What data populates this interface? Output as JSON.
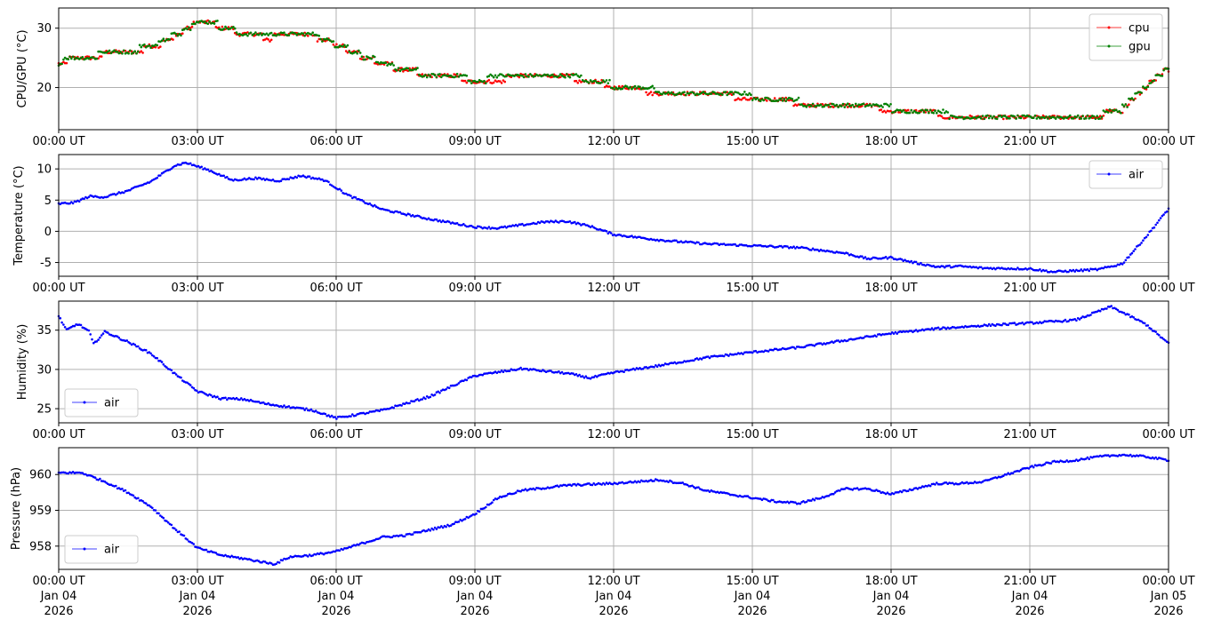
{
  "chart_data": [
    {
      "type": "scatter",
      "ylabel": "CPU/GPU (°C)",
      "xlim": [
        "2026-01-04T00:00:00Z",
        "2026-01-05T00:00:00Z"
      ],
      "ylim": [
        12.9,
        33.4
      ],
      "yticks": [
        20,
        30
      ],
      "grid": true,
      "legend": "top-right",
      "x_tick_labels": [
        "00:00 UT",
        "03:00 UT",
        "06:00 UT",
        "09:00 UT",
        "12:00 UT",
        "15:00 UT",
        "18:00 UT",
        "21:00 UT",
        "00:00 UT"
      ],
      "series": [
        {
          "name": "cpu",
          "color": "#ff0000",
          "x": [
            "2026-01-04T00:00:00Z",
            "2026-01-04T00:30:00Z",
            "2026-01-04T01:00:00Z",
            "2026-01-04T01:30:00Z",
            "2026-01-04T02:00:00Z",
            "2026-01-04T02:30:00Z",
            "2026-01-04T03:00:00Z",
            "2026-01-04T03:30:00Z",
            "2026-01-04T04:00:00Z",
            "2026-01-04T04:30:00Z",
            "2026-01-04T05:00:00Z",
            "2026-01-04T05:30:00Z",
            "2026-01-04T06:00:00Z",
            "2026-01-04T06:30:00Z",
            "2026-01-04T07:00:00Z",
            "2026-01-04T08:00:00Z",
            "2026-01-04T09:00:00Z",
            "2026-01-04T10:00:00Z",
            "2026-01-04T11:00:00Z",
            "2026-01-04T12:00:00Z",
            "2026-01-04T13:00:00Z",
            "2026-01-04T14:00:00Z",
            "2026-01-04T15:00:00Z",
            "2026-01-04T16:00:00Z",
            "2026-01-04T17:00:00Z",
            "2026-01-04T18:00:00Z",
            "2026-01-04T19:00:00Z",
            "2026-01-04T20:00:00Z",
            "2026-01-04T21:00:00Z",
            "2026-01-04T22:00:00Z",
            "2026-01-04T22:30:00Z",
            "2026-01-04T23:00:00Z",
            "2026-01-04T23:30:00Z",
            "2026-01-05T00:00:00Z"
          ],
          "values": [
            24.3,
            24.8,
            25.6,
            25.8,
            26.8,
            28.5,
            31.1,
            30.3,
            28.9,
            28.4,
            28.8,
            28.8,
            27.2,
            25.5,
            23.9,
            22.0,
            21.3,
            21.6,
            21.7,
            20.2,
            19.2,
            18.8,
            18.3,
            17.4,
            16.8,
            16.4,
            15.5,
            15.1,
            14.8,
            14.8,
            15.2,
            16.4,
            20.0,
            23.2
          ]
        },
        {
          "name": "gpu",
          "color": "#008000",
          "x": [
            "2026-01-04T00:00:00Z",
            "2026-01-04T00:30:00Z",
            "2026-01-04T01:00:00Z",
            "2026-01-04T01:30:00Z",
            "2026-01-04T02:00:00Z",
            "2026-01-04T02:30:00Z",
            "2026-01-04T03:00:00Z",
            "2026-01-04T03:30:00Z",
            "2026-01-04T04:00:00Z",
            "2026-01-04T04:30:00Z",
            "2026-01-04T05:00:00Z",
            "2026-01-04T05:30:00Z",
            "2026-01-04T06:00:00Z",
            "2026-01-04T06:30:00Z",
            "2026-01-04T07:00:00Z",
            "2026-01-04T08:00:00Z",
            "2026-01-04T09:00:00Z",
            "2026-01-04T10:00:00Z",
            "2026-01-04T11:00:00Z",
            "2026-01-04T12:00:00Z",
            "2026-01-04T13:00:00Z",
            "2026-01-04T14:00:00Z",
            "2026-01-04T15:00:00Z",
            "2026-01-04T16:00:00Z",
            "2026-01-04T17:00:00Z",
            "2026-01-04T18:00:00Z",
            "2026-01-04T19:00:00Z",
            "2026-01-04T20:00:00Z",
            "2026-01-04T21:00:00Z",
            "2026-01-04T22:00:00Z",
            "2026-01-04T22:30:00Z",
            "2026-01-04T23:00:00Z",
            "2026-01-04T23:30:00Z",
            "2026-01-05T00:00:00Z"
          ],
          "values": [
            24.4,
            24.9,
            25.8,
            26.0,
            27.0,
            28.8,
            31.2,
            30.4,
            29.0,
            28.6,
            29.0,
            29.0,
            27.4,
            25.6,
            24.0,
            22.1,
            21.4,
            21.8,
            22.0,
            20.4,
            19.4,
            19.0,
            18.5,
            17.5,
            16.9,
            16.5,
            15.6,
            15.2,
            14.9,
            14.9,
            15.3,
            16.5,
            20.1,
            23.3
          ]
        }
      ]
    },
    {
      "type": "scatter",
      "ylabel": "Temperature (°C)",
      "xlim": [
        "2026-01-04T00:00:00Z",
        "2026-01-05T00:00:00Z"
      ],
      "ylim": [
        -7.2,
        12.3
      ],
      "yticks": [
        -5,
        0,
        5,
        10
      ],
      "grid": true,
      "legend": "top-right",
      "x_tick_labels": [
        "00:00 UT",
        "03:00 UT",
        "06:00 UT",
        "09:00 UT",
        "12:00 UT",
        "15:00 UT",
        "18:00 UT",
        "21:00 UT",
        "00:00 UT"
      ],
      "series": [
        {
          "name": "air",
          "color": "#0000ff",
          "x": [
            "2026-01-04T00:00:00Z",
            "2026-01-04T00:20:00Z",
            "2026-01-04T00:40:00Z",
            "2026-01-04T01:00:00Z",
            "2026-01-04T01:30:00Z",
            "2026-01-04T02:00:00Z",
            "2026-01-04T02:30:00Z",
            "2026-01-04T02:45:00Z",
            "2026-01-04T03:15:00Z",
            "2026-01-04T03:45:00Z",
            "2026-01-04T04:15:00Z",
            "2026-01-04T04:45:00Z",
            "2026-01-04T05:15:00Z",
            "2026-01-04T05:45:00Z",
            "2026-01-04T06:15:00Z",
            "2026-01-04T07:00:00Z",
            "2026-01-04T08:00:00Z",
            "2026-01-04T09:00:00Z",
            "2026-01-04T09:30:00Z",
            "2026-01-04T10:30:00Z",
            "2026-01-04T11:00:00Z",
            "2026-01-04T11:30:00Z",
            "2026-01-04T12:00:00Z",
            "2026-01-04T13:00:00Z",
            "2026-01-04T14:00:00Z",
            "2026-01-04T15:00:00Z",
            "2026-01-04T16:00:00Z",
            "2026-01-04T17:00:00Z",
            "2026-01-04T17:30:00Z",
            "2026-01-04T18:00:00Z",
            "2026-01-04T18:30:00Z",
            "2026-01-04T19:00:00Z",
            "2026-01-04T19:30:00Z",
            "2026-01-04T20:00:00Z",
            "2026-01-04T21:00:00Z",
            "2026-01-04T21:30:00Z",
            "2026-01-04T22:30:00Z",
            "2026-01-04T23:00:00Z",
            "2026-01-04T23:30:00Z",
            "2026-01-05T00:00:00Z"
          ],
          "values": [
            4.4,
            4.6,
            5.6,
            5.5,
            6.5,
            8.0,
            10.5,
            11.0,
            9.8,
            8.2,
            8.5,
            8.1,
            8.9,
            8.2,
            5.8,
            3.5,
            2.0,
            0.7,
            0.5,
            1.5,
            1.6,
            0.8,
            -0.5,
            -1.4,
            -2.0,
            -2.3,
            -2.6,
            -3.5,
            -4.4,
            -4.2,
            -5.0,
            -5.7,
            -5.6,
            -5.9,
            -6.0,
            -6.5,
            -6.1,
            -5.2,
            -1.0,
            3.6
          ]
        }
      ]
    },
    {
      "type": "scatter",
      "ylabel": "Humidity (%)",
      "xlim": [
        "2026-01-04T00:00:00Z",
        "2026-01-05T00:00:00Z"
      ],
      "ylim": [
        23.2,
        38.7
      ],
      "yticks": [
        25,
        30,
        35
      ],
      "grid": true,
      "legend": "lower-left",
      "x_tick_labels": [
        "00:00 UT",
        "03:00 UT",
        "06:00 UT",
        "09:00 UT",
        "12:00 UT",
        "15:00 UT",
        "18:00 UT",
        "21:00 UT",
        "00:00 UT"
      ],
      "series": [
        {
          "name": "air",
          "color": "#0000ff",
          "x": [
            "2026-01-04T00:00:00Z",
            "2026-01-04T00:10:00Z",
            "2026-01-04T00:25:00Z",
            "2026-01-04T00:40:00Z",
            "2026-01-04T00:45:00Z",
            "2026-01-04T01:00:00Z",
            "2026-01-04T01:30:00Z",
            "2026-01-04T02:00:00Z",
            "2026-01-04T02:30:00Z",
            "2026-01-04T03:00:00Z",
            "2026-01-04T03:30:00Z",
            "2026-01-04T04:00:00Z",
            "2026-01-04T04:30:00Z",
            "2026-01-04T05:00:00Z",
            "2026-01-04T05:30:00Z",
            "2026-01-04T06:00:00Z",
            "2026-01-04T06:30:00Z",
            "2026-01-04T07:00:00Z",
            "2026-01-04T08:00:00Z",
            "2026-01-04T09:00:00Z",
            "2026-01-04T10:00:00Z",
            "2026-01-04T11:00:00Z",
            "2026-01-04T11:30:00Z",
            "2026-01-04T12:00:00Z",
            "2026-01-04T13:00:00Z",
            "2026-01-04T14:00:00Z",
            "2026-01-04T15:00:00Z",
            "2026-01-04T16:00:00Z",
            "2026-01-04T17:00:00Z",
            "2026-01-04T18:00:00Z",
            "2026-01-04T19:00:00Z",
            "2026-01-04T20:00:00Z",
            "2026-01-04T21:00:00Z",
            "2026-01-04T22:00:00Z",
            "2026-01-04T22:45:00Z",
            "2026-01-04T23:30:00Z",
            "2026-01-05T00:00:00Z"
          ],
          "values": [
            36.8,
            35.0,
            35.8,
            34.8,
            33.2,
            34.8,
            33.5,
            32.0,
            29.5,
            27.2,
            26.3,
            26.2,
            25.6,
            25.2,
            24.8,
            23.8,
            24.3,
            24.8,
            26.5,
            29.2,
            30.1,
            29.5,
            28.9,
            29.6,
            30.5,
            31.5,
            32.2,
            32.8,
            33.7,
            34.6,
            35.2,
            35.6,
            35.9,
            36.3,
            38.0,
            35.8,
            33.3
          ]
        }
      ]
    },
    {
      "type": "scatter",
      "ylabel": "Pressure (hPa)",
      "xlim": [
        "2026-01-04T00:00:00Z",
        "2026-01-05T00:00:00Z"
      ],
      "ylim": [
        957.35,
        960.75
      ],
      "yticks": [
        958,
        959,
        960
      ],
      "grid": true,
      "legend": "lower-left",
      "x_tick_labels": [
        "00:00 UT\nJan 04\n2026",
        "03:00 UT\nJan 04\n2026",
        "06:00 UT\nJan 04\n2026",
        "09:00 UT\nJan 04\n2026",
        "12:00 UT\nJan 04\n2026",
        "15:00 UT\nJan 04\n2026",
        "18:00 UT\nJan 04\n2026",
        "21:00 UT\nJan 04\n2026",
        "00:00 UT\nJan 05\n2026"
      ],
      "series": [
        {
          "name": "air",
          "color": "#0000ff",
          "x": [
            "2026-01-04T00:00:00Z",
            "2026-01-04T00:30:00Z",
            "2026-01-04T01:00:00Z",
            "2026-01-04T01:30:00Z",
            "2026-01-04T02:00:00Z",
            "2026-01-04T02:30:00Z",
            "2026-01-04T03:00:00Z",
            "2026-01-04T03:30:00Z",
            "2026-01-04T04:00:00Z",
            "2026-01-04T04:40:00Z",
            "2026-01-04T05:00:00Z",
            "2026-01-04T05:30:00Z",
            "2026-01-04T06:00:00Z",
            "2026-01-04T06:30:00Z",
            "2026-01-04T07:00:00Z",
            "2026-01-04T07:30:00Z",
            "2026-01-04T08:00:00Z",
            "2026-01-04T08:30:00Z",
            "2026-01-04T09:00:00Z",
            "2026-01-04T09:30:00Z",
            "2026-01-04T10:00:00Z",
            "2026-01-04T11:00:00Z",
            "2026-01-04T12:00:00Z",
            "2026-01-04T12:30:00Z",
            "2026-01-04T13:00:00Z",
            "2026-01-04T13:30:00Z",
            "2026-01-04T14:00:00Z",
            "2026-01-04T14:30:00Z",
            "2026-01-04T15:00:00Z",
            "2026-01-04T15:30:00Z",
            "2026-01-04T16:00:00Z",
            "2026-01-04T16:30:00Z",
            "2026-01-04T17:00:00Z",
            "2026-01-04T17:30:00Z",
            "2026-01-04T18:00:00Z",
            "2026-01-04T18:30:00Z",
            "2026-01-04T19:00:00Z",
            "2026-01-04T19:30:00Z",
            "2026-01-04T20:00:00Z",
            "2026-01-04T20:30:00Z",
            "2026-01-04T21:00:00Z",
            "2026-01-04T21:30:00Z",
            "2026-01-04T22:00:00Z",
            "2026-01-04T22:30:00Z",
            "2026-01-04T23:00:00Z",
            "2026-01-04T23:30:00Z",
            "2026-01-05T00:00:00Z"
          ],
          "values": [
            960.05,
            960.05,
            959.8,
            959.5,
            959.1,
            958.5,
            957.95,
            957.75,
            957.65,
            957.5,
            957.7,
            957.75,
            957.85,
            958.05,
            958.25,
            958.3,
            958.45,
            958.6,
            958.9,
            959.35,
            959.55,
            959.7,
            959.75,
            959.8,
            959.85,
            959.75,
            959.55,
            959.45,
            959.35,
            959.25,
            959.2,
            959.35,
            959.6,
            959.6,
            959.45,
            959.6,
            959.75,
            959.75,
            959.8,
            960.0,
            960.2,
            960.35,
            960.4,
            960.5,
            960.55,
            960.5,
            960.4
          ]
        }
      ]
    }
  ]
}
